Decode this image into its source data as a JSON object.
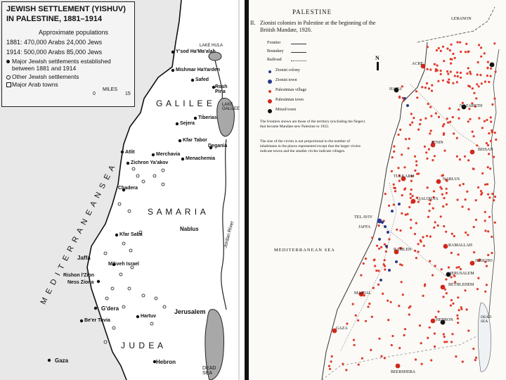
{
  "left": {
    "title_line1": "JEWISH SETTLEMENT (YISHUV)",
    "title_line2": "IN PALESTINE, 1881–1914",
    "pop_heading": "Approximate populations",
    "pop_1881": "1881: 470,000 Arabs   24,000 Jews",
    "pop_1914": "1914: 500,000 Arabs   85,000 Jews",
    "legend_major": "Major Jewish settlements established between 1881 and 1914",
    "legend_other": "Other Jewish settlements",
    "legend_arab": "Major Arab towns",
    "scale_label": "MILES",
    "scale_end": "15",
    "scale_start": "0",
    "regions": {
      "galilee": "G A L I L E E",
      "samaria": "S A M A R I A",
      "judea": "J U D E A"
    },
    "sea_label": "M E D I T E R R A N E A N   S E A",
    "lakes": {
      "hula": "LAKE HULA",
      "galilee": "LAKE GALILEE",
      "dead_sea": "DEAD SEA"
    },
    "river": "Jordan River",
    "places": {
      "yesod": "Y'sod Ha'Ma'alah",
      "mishmar": "Mishmar HaYarden",
      "safed": "Safed",
      "rosh_pina": "Rosh Pina",
      "tiberias": "Tiberias",
      "sejera": "Sejera",
      "kfar_tabor": "Kfar Tabor",
      "atlit": "Atlit",
      "merchavia": "Merchavia",
      "menachemia": "Menachemia",
      "degania": "Degania",
      "zichron": "Zichron Ya'akov",
      "chadera": "Chadera",
      "kfar_saba": "Kfar Saba",
      "nablus": "Nablus",
      "jaffa": "Jaffa",
      "mikveh": "Mikveh Israel",
      "rishon": "Rishon l'Zion",
      "ness_ziona": "Ness Ziona",
      "gedera": "G'dera",
      "hartuv": "Hartuv",
      "jerusalem": "Jerusalem",
      "beer_tuvia": "Be'er Tuvia",
      "gaza": "Gaza",
      "hebron": "Hebron"
    }
  },
  "right": {
    "heading": "PALESTINE",
    "subtitle_num": "II.",
    "subtitle": "Zionist colonies in Palestine at the beginning of the British Mandate, 1920.",
    "legend": {
      "frontier": "Frontier",
      "railroad": "Railroad",
      "zionist_colony": "Zionist colony",
      "zionist_town": "Zionist town",
      "palestinian_village": "Palestinian village",
      "palestinian_town": "Palestinian town",
      "mixed_town": "Mixed town",
      "boundary": "Boundary"
    },
    "note1": "The frontiers shown are those of the territory (excluding the Negev) that became Mandate new Palestine in 1922.",
    "note2": "The size of the circles is not proportional to the number of inhabitants in the places represented except that the larger circles indicate towns and the smaller circles indicate villages.",
    "north_label": "N",
    "sea_label": "MEDITERRANEAN SEA",
    "dead_sea": "DEAD SEA",
    "places": {
      "lebanon": "LEBANON",
      "acre": "ACRE",
      "haifa": "HAIFA",
      "nazareth": "NAZARETH",
      "jenin": "JENIN",
      "beisan": "BEISAN",
      "tulkarm": "TULKARM",
      "nablus": "NABLUS",
      "qalqilya": "QALQILYA",
      "tel_aviv": "TEL AVIV",
      "jaffa": "JAFFA",
      "ramleh": "RAMLEH",
      "ramallah": "RAMALLAH",
      "jericho": "JERICHO",
      "jerusalem": "JERUSALEM",
      "bethlehem": "BETHLEHEM",
      "majdal": "MAJDAL",
      "hebron": "HEBRON",
      "gaza": "GAZA",
      "beersheba": "BEERSHEBA"
    },
    "colors": {
      "village": "#e03a2a",
      "town": "#d0281c",
      "zionist": "#2a3a8a",
      "mixed": "#111111"
    }
  }
}
